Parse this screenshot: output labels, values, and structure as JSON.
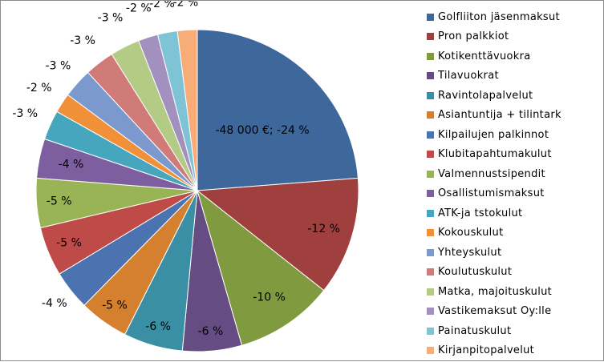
{
  "chart_data": {
    "type": "pie",
    "legend_position": "right",
    "categories": [
      "Golfliiton jäsenmaksut",
      "Pron palkkiot",
      "Kotikenttävuokra",
      "Tilavuokrat",
      "Ravintolapalvelut",
      "Asiantuntija + tilintark",
      "Kilpailujen palkinnot",
      "Klubitapahtumakulut",
      "Valmennustsipendit",
      "Osallistumismaksut",
      "ATK-ja tstokulut",
      "Kokouskulut",
      "Yhteyskulut",
      "Koulutuskulut",
      "Matka, majoituskulut",
      "Vastikemaksut Oy:lle",
      "Painatuskulut",
      "Kirjanpitopalvelut"
    ],
    "values": [
      24,
      12,
      10,
      6,
      6,
      5,
      4,
      5,
      5,
      4,
      3,
      2,
      3,
      3,
      3,
      2,
      2,
      2
    ],
    "data_labels": [
      "-48 000 €; -24 %",
      "-12 %",
      "-10 %",
      "-6 %",
      "-6 %",
      "-5 %",
      "-4 %",
      "-5 %",
      "-5 %",
      "-4 %",
      "-3 %",
      "-2 %",
      "-3 %",
      "-3 %",
      "-3 %",
      "-2 %",
      "-2 %",
      "-2 %"
    ],
    "colors": [
      "#3e679c",
      "#a0403e",
      "#7f9a3f",
      "#654d84",
      "#3a8fa4",
      "#d4802e",
      "#4a73b0",
      "#be4b48",
      "#98b454",
      "#7d5fa0",
      "#46a6be",
      "#f0913a",
      "#7b99cd",
      "#d17b79",
      "#b4cb86",
      "#a291bf",
      "#7fc3d6",
      "#f8ad79"
    ]
  }
}
